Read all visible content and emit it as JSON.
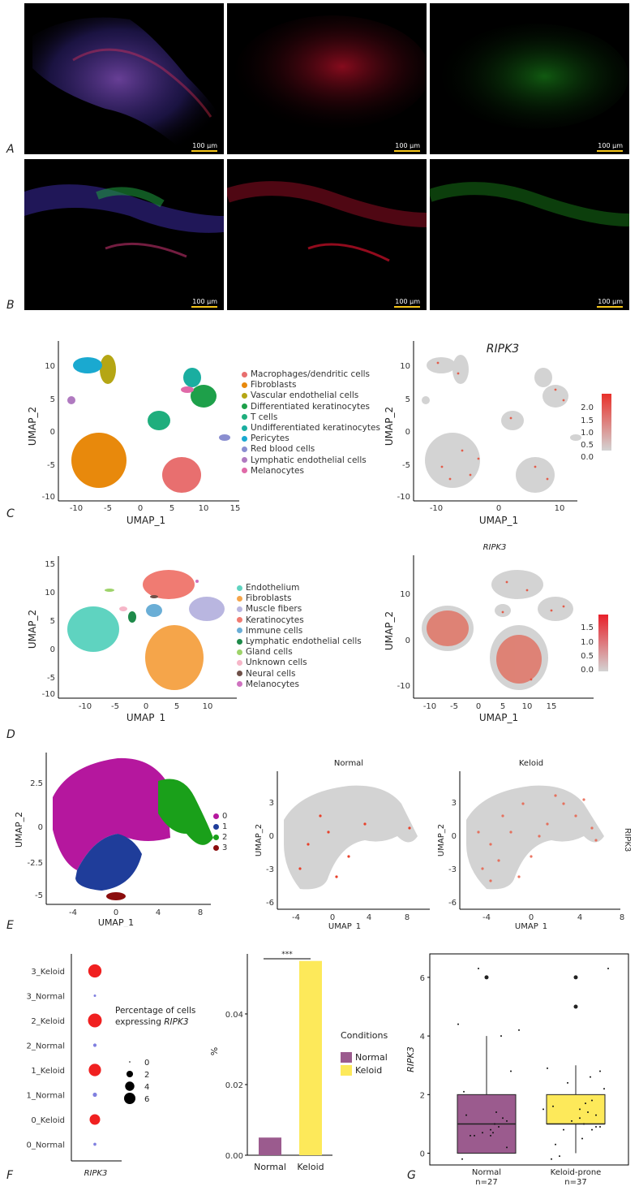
{
  "panel_labels": {
    "A": "A",
    "B": "B",
    "C": "C",
    "D": "D",
    "E": "E",
    "F": "F",
    "G": "G"
  },
  "scale_bar": "100 μm",
  "panel_C": {
    "clusters": [
      {
        "name": "Macrophages/dendritic cells",
        "color": "#e86f6f"
      },
      {
        "name": "Fibroblasts",
        "color": "#e8890c"
      },
      {
        "name": "Vascular endothelial cells",
        "color": "#b5a614"
      },
      {
        "name": "Differentiated keratinocytes",
        "color": "#1ea04a"
      },
      {
        "name": "T cells",
        "color": "#1fae7d"
      },
      {
        "name": "Undifferentiated keratinocytes",
        "color": "#1aaea0"
      },
      {
        "name": "Pericytes",
        "color": "#1aa9d0"
      },
      {
        "name": "Red blood cells",
        "color": "#8a8ed0"
      },
      {
        "name": "Lymphatic endothelial cells",
        "color": "#b07ac0"
      },
      {
        "name": "Melanocytes",
        "color": "#e06aa8"
      }
    ],
    "xlabel": "UMAP_1",
    "ylabel": "UMAP_2",
    "xticks": [
      "-10",
      "-5",
      "0",
      "5",
      "10",
      "15"
    ],
    "yticks": [
      "10",
      "5",
      "0",
      "-5",
      "-10"
    ],
    "feature_title": "RIPK3",
    "feature_xticks": [
      "-10",
      "0",
      "10"
    ],
    "colorbar_ticks": [
      "2.0",
      "1.5",
      "1.0",
      "0.5",
      "0.0"
    ]
  },
  "panel_D": {
    "clusters": [
      {
        "name": "Endothelium",
        "color": "#5fd3c0"
      },
      {
        "name": "Fibroblasts",
        "color": "#f5a54a"
      },
      {
        "name": "Muscle fibers",
        "color": "#b9b6e0"
      },
      {
        "name": "Keratinocytes",
        "color": "#f07b72"
      },
      {
        "name": "Immune cells",
        "color": "#6aaed6"
      },
      {
        "name": "Lymphatic endothelial cells",
        "color": "#1e8a4a"
      },
      {
        "name": "Gland cells",
        "color": "#9ed36a"
      },
      {
        "name": "Unknown cells",
        "color": "#f6b6c8"
      },
      {
        "name": "Neural cells",
        "color": "#6e5048"
      },
      {
        "name": "Melanocytes",
        "color": "#cf72c0"
      }
    ],
    "xlabel": "UMAP_1",
    "ylabel": "UMAP_2",
    "xticks": [
      "-10",
      "-5",
      "0",
      "5",
      "10"
    ],
    "yticks": [
      "15",
      "10",
      "5",
      "0",
      "-5",
      "-10"
    ],
    "feature_title": "RIPK3",
    "feature_xticks": [
      "-10",
      "-5",
      "0",
      "5",
      "10",
      "15"
    ],
    "feature_yticks": [
      "10",
      "0",
      "-10"
    ],
    "colorbar_ticks": [
      "1.5",
      "1.0",
      "0.5",
      "0.0"
    ]
  },
  "panel_E": {
    "clusters": [
      {
        "name": "0",
        "color": "#b5179e"
      },
      {
        "name": "1",
        "color": "#1f3d9a"
      },
      {
        "name": "2",
        "color": "#1aa01a"
      },
      {
        "name": "3",
        "color": "#8b0d0d"
      }
    ],
    "xlabel": "UMAP_1",
    "ylabel": "UMAP_2",
    "xticks": [
      "-4",
      "0",
      "4",
      "8"
    ],
    "yticks": [
      "2.5",
      "0",
      "-2.5",
      "-5"
    ],
    "feature_yticks": [
      "3",
      "0",
      "-3",
      "-6"
    ],
    "normal_title": "Normal",
    "keloid_title": "Keloid",
    "side_label": "RIPK3"
  },
  "chart_data": [
    {
      "type": "scatter",
      "title": "Percentage of cells expressing RIPK3",
      "legend_title_line1": "Percentage of cells",
      "legend_title_line2": "expressing",
      "legend_title_gene": "RIPK3",
      "xlabel": "RIPK3",
      "categories": [
        "3_Keloid",
        "3_Normal",
        "2_Keloid",
        "2_Normal",
        "1_Keloid",
        "1_Normal",
        "0_Keloid",
        "0_Normal"
      ],
      "percent": [
        6.0,
        0.2,
        6.5,
        0.4,
        5.2,
        0.6,
        3.8,
        0.3
      ],
      "avg_expression": [
        1,
        0.1,
        1,
        0.2,
        1,
        0.3,
        0.9,
        0.1
      ],
      "size_legend": [
        "0",
        "2",
        "4",
        "6"
      ]
    },
    {
      "type": "bar",
      "categories": [
        "Normal",
        "Keloid"
      ],
      "values": [
        0.005,
        0.055
      ],
      "ylabel": "%",
      "yticks": [
        "0.00",
        "0.02",
        "0.04"
      ],
      "ylim": [
        0,
        0.057
      ],
      "significance": "***",
      "legend_title": "Conditions",
      "legend": [
        {
          "name": "Normal",
          "color": "#9b5b8e"
        },
        {
          "name": "Keloid",
          "color": "#fde95a"
        }
      ]
    },
    {
      "type": "box",
      "ylabel": "RIPK3",
      "yticks": [
        "0",
        "2",
        "4",
        "6"
      ],
      "ylim": [
        -0.4,
        6.8
      ],
      "groups": [
        {
          "name": "Normal",
          "n": "n=27",
          "q1": 0,
          "median": 1,
          "q3": 2,
          "whisker_low": 0,
          "whisker_high": 4,
          "outliers": [
            6
          ],
          "color": "#9b5b8e"
        },
        {
          "name": "Keloid-prone",
          "n": "n=37",
          "q1": 1,
          "median": 1,
          "q3": 2,
          "whisker_low": 0,
          "whisker_high": 3,
          "outliers": [
            5,
            6
          ],
          "color": "#fde95a"
        }
      ]
    }
  ]
}
